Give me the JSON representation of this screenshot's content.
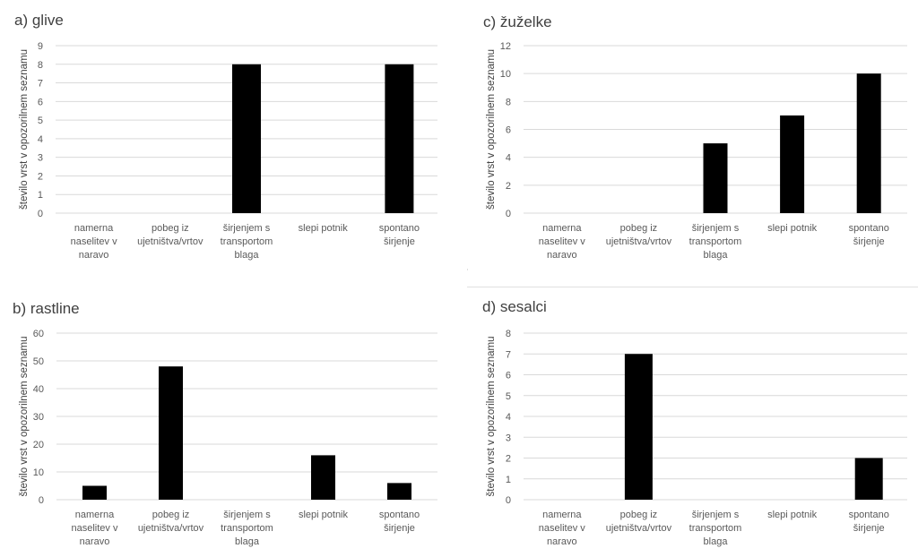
{
  "chart_data": [
    {
      "type": "bar",
      "title": "a) glive",
      "ylabel": "število vrst v opozorilnem seznamu",
      "categories": [
        "namerna naselitev v naravo",
        "pobeg iz ujetništva/vrtov",
        "širjenjem s transportom blaga",
        "slepi potnik",
        "spontano širjenje"
      ],
      "categories_lines": [
        [
          "namerna",
          "naselitev v",
          "naravo"
        ],
        [
          "pobeg iz",
          "ujetništva/vrtov"
        ],
        [
          "širjenjem s",
          "transportom",
          "blaga"
        ],
        [
          "slepi potnik"
        ],
        [
          "spontano",
          "širjenje"
        ]
      ],
      "values": [
        0,
        0,
        8,
        0,
        8
      ],
      "ylim": [
        0,
        9
      ],
      "yticks": [
        0,
        1,
        2,
        3,
        4,
        5,
        6,
        7,
        8,
        9
      ],
      "grid": true
    },
    {
      "type": "bar",
      "title": "c) žuželke",
      "ylabel": "število vrst v opozorilnem seznamu",
      "categories": [
        "namerna naselitev v naravo",
        "pobeg iz ujetništva/vrtov",
        "širjenjem s transportom blaga",
        "slepi potnik",
        "spontano širjenje"
      ],
      "categories_lines": [
        [
          "namerna",
          "naselitev v",
          "naravo"
        ],
        [
          "pobeg iz",
          "ujetništva/vrtov"
        ],
        [
          "širjenjem s",
          "transportom",
          "blaga"
        ],
        [
          "slepi potnik"
        ],
        [
          "spontano",
          "širjenje"
        ]
      ],
      "values": [
        0,
        0,
        5,
        7,
        10
      ],
      "ylim": [
        0,
        12
      ],
      "yticks": [
        0,
        2,
        4,
        6,
        8,
        10,
        12
      ],
      "grid": true
    },
    {
      "type": "bar",
      "title": "b) rastline",
      "ylabel": "število vrst v opozorilnem seznamu",
      "categories": [
        "namerna naselitev v naravo",
        "pobeg iz ujetništva/vrtov",
        "širjenjem s transportom blaga",
        "slepi potnik",
        "spontano širjenje"
      ],
      "categories_lines": [
        [
          "namerna",
          "naselitev v",
          "naravo"
        ],
        [
          "pobeg iz",
          "ujetništva/vrtov"
        ],
        [
          "širjenjem s",
          "transportom",
          "blaga"
        ],
        [
          "slepi potnik"
        ],
        [
          "spontano",
          "širjenje"
        ]
      ],
      "values": [
        5,
        48,
        0,
        16,
        6
      ],
      "ylim": [
        0,
        60
      ],
      "yticks": [
        0,
        10,
        20,
        30,
        40,
        50,
        60
      ],
      "grid": true
    },
    {
      "type": "bar",
      "title": "d) sesalci",
      "ylabel": "število vrst v opozorilnem seznamu",
      "categories": [
        "namerna naselitev v naravo",
        "pobeg iz ujetništva/vrtov",
        "širjenjem s transportom blaga",
        "slepi potnik",
        "spontano širjenje"
      ],
      "categories_lines": [
        [
          "namerna",
          "naselitev v",
          "naravo"
        ],
        [
          "pobeg iz",
          "ujetništva/vrtov"
        ],
        [
          "širjenjem s",
          "transportom",
          "blaga"
        ],
        [
          "slepi potnik"
        ],
        [
          "spontano",
          "širjenje"
        ]
      ],
      "values": [
        0,
        7,
        0,
        0,
        2
      ],
      "ylim": [
        0,
        8
      ],
      "yticks": [
        0,
        1,
        2,
        3,
        4,
        5,
        6,
        7,
        8
      ],
      "grid": true
    }
  ]
}
